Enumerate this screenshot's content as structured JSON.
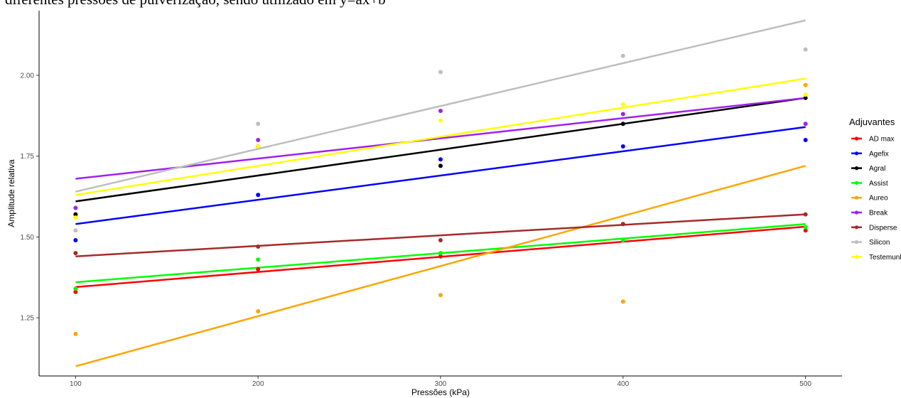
{
  "caption": "diferentes pressões de pulverização, sendo utilizado em y=ax+b",
  "chart_data": {
    "type": "scatter",
    "xlabel": "Pressões (kPa)",
    "ylabel": "Amplitude relativa",
    "xlim": [
      80,
      520
    ],
    "ylim": [
      1.07,
      2.2
    ],
    "x_ticks": [
      "100",
      "200",
      "300",
      "400",
      "500"
    ],
    "y_ticks": [
      "1.25",
      "1.50",
      "1.75",
      "2.00"
    ],
    "x": [
      100,
      200,
      300,
      400,
      500
    ],
    "grid": false,
    "legend_title": "Adjuvantes",
    "legend_position": "right",
    "series": [
      {
        "name": "AD max",
        "color": "#ff0000",
        "points": [
          1.33,
          1.4,
          1.44,
          1.54,
          1.52
        ],
        "fit": [
          1.345,
          1.532
        ]
      },
      {
        "name": "Agefix",
        "color": "#0000ff",
        "points": [
          1.49,
          1.63,
          1.74,
          1.78,
          1.8
        ],
        "fit": [
          1.54,
          1.84
        ]
      },
      {
        "name": "Agral",
        "color": "#000000",
        "points": [
          1.57,
          1.78,
          1.72,
          1.85,
          1.93
        ],
        "fit": [
          1.61,
          1.93
        ]
      },
      {
        "name": "Assist",
        "color": "#00ff00",
        "points": [
          1.34,
          1.43,
          1.45,
          1.49,
          1.53
        ],
        "fit": [
          1.36,
          1.54
        ]
      },
      {
        "name": "Aureo",
        "color": "#ffa500",
        "points": [
          1.2,
          1.27,
          1.32,
          1.3,
          1.97
        ],
        "fit": [
          1.1,
          1.72
        ]
      },
      {
        "name": "Break",
        "color": "#a020f0",
        "points": [
          1.59,
          1.8,
          1.89,
          1.88,
          1.85
        ],
        "fit": [
          1.68,
          1.93
        ]
      },
      {
        "name": "Disperse",
        "color": "#a52a2a",
        "points": [
          1.45,
          1.47,
          1.49,
          1.54,
          1.57
        ],
        "fit": [
          1.44,
          1.57
        ]
      },
      {
        "name": "Silicon",
        "color": "#bebebe",
        "points": [
          1.52,
          1.85,
          2.01,
          2.06,
          2.08
        ],
        "fit": [
          1.64,
          2.17
        ]
      },
      {
        "name": "Testemunha",
        "color": "#ffff00",
        "points": [
          1.56,
          1.78,
          1.86,
          1.91,
          1.94
        ],
        "fit": [
          1.63,
          1.99
        ]
      }
    ]
  }
}
